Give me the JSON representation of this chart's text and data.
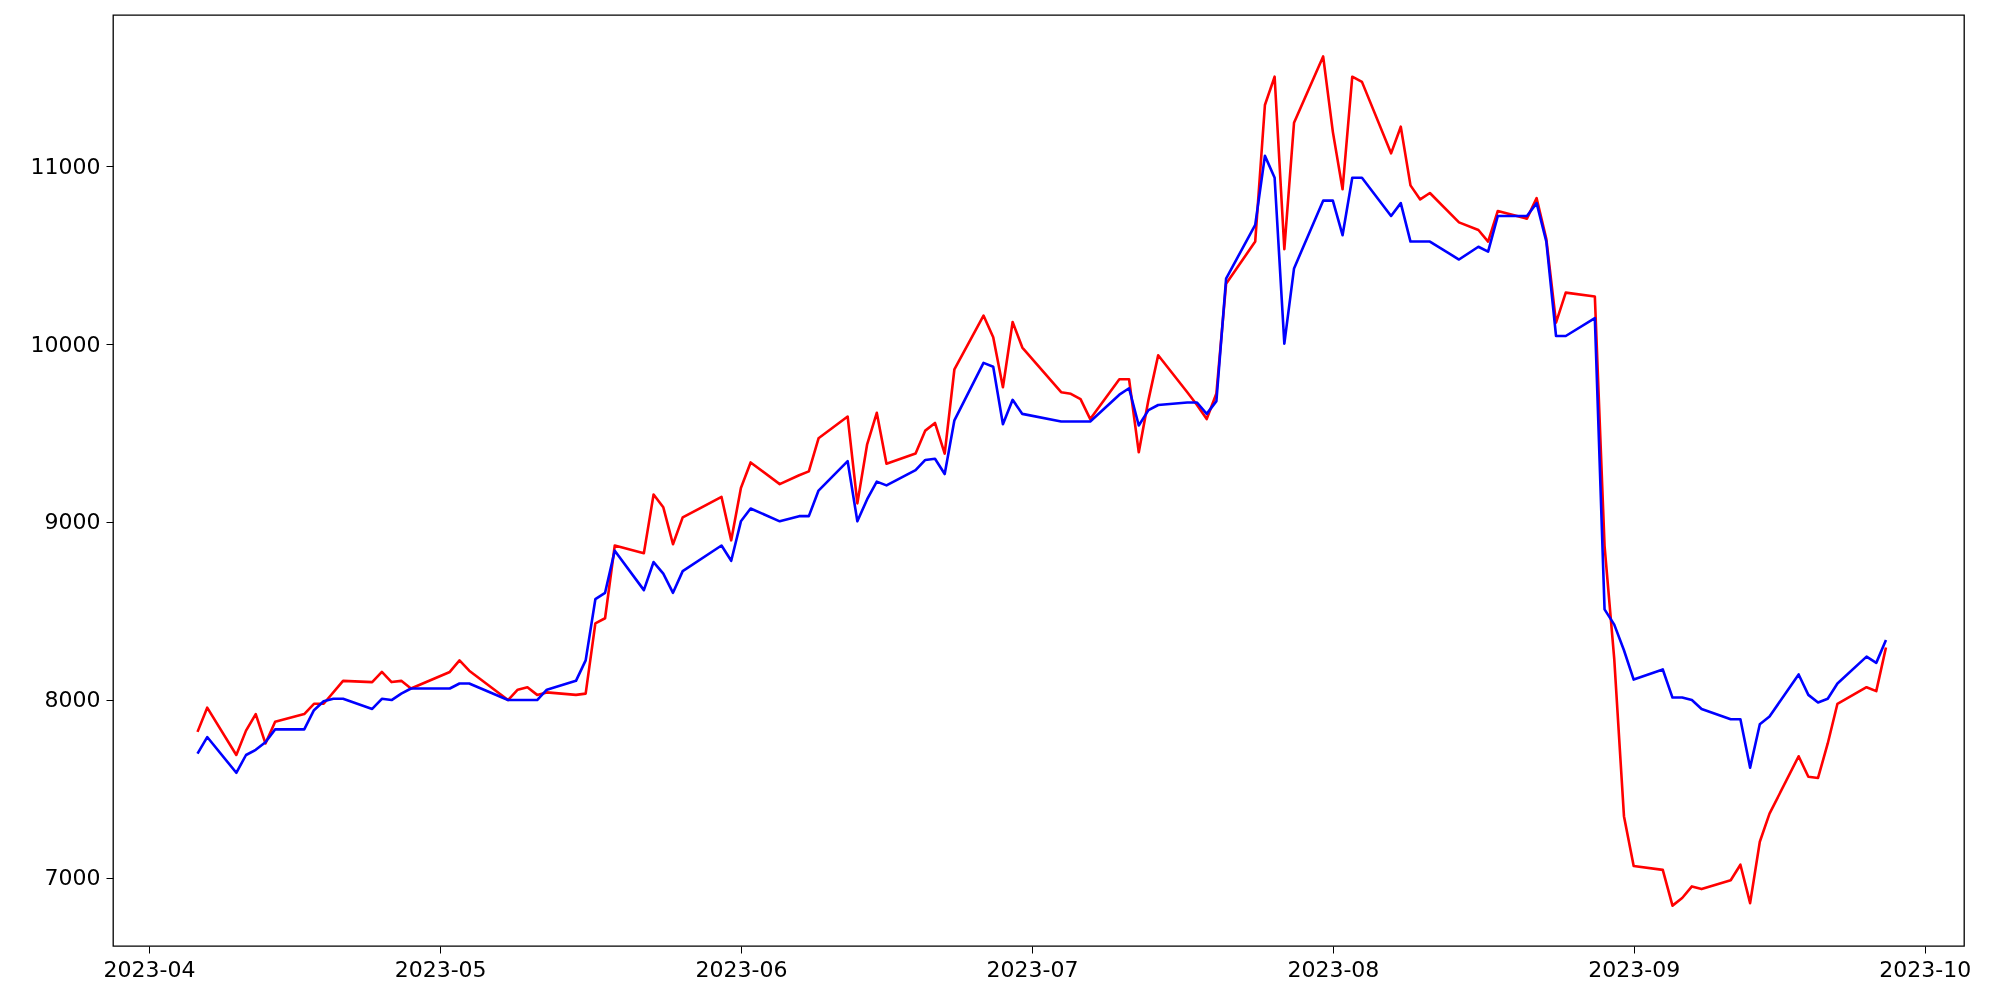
{
  "chart_data": {
    "type": "line",
    "xlim": [
      "2023-03-28T07:00",
      "2023-10-05T01:00"
    ],
    "ylim": [
      6615,
      11850
    ],
    "xticks": [
      "2023-04",
      "2023-05",
      "2023-06",
      "2023-07",
      "2023-08",
      "2023-09",
      "2023-10"
    ],
    "yticks": [
      7000,
      8000,
      9000,
      10000,
      11000
    ],
    "grid": false,
    "line_style": "solid",
    "marker": "none",
    "series": [
      {
        "color": "#ff0000",
        "x": [
          "2023-04-06",
          "2023-04-07",
          "2023-04-10",
          "2023-04-11",
          "2023-04-12",
          "2023-04-13",
          "2023-04-14",
          "2023-04-17",
          "2023-04-18",
          "2023-04-19",
          "2023-04-21",
          "2023-04-24",
          "2023-04-25",
          "2023-04-26",
          "2023-04-27",
          "2023-04-28",
          "2023-05-02",
          "2023-05-03",
          "2023-05-04",
          "2023-05-08",
          "2023-05-09",
          "2023-05-10",
          "2023-05-11",
          "2023-05-12",
          "2023-05-15",
          "2023-05-16",
          "2023-05-17",
          "2023-05-18",
          "2023-05-19",
          "2023-05-22",
          "2023-05-23",
          "2023-05-24",
          "2023-05-25",
          "2023-05-26",
          "2023-05-30",
          "2023-05-31",
          "2023-06-01",
          "2023-06-02",
          "2023-06-05",
          "2023-06-07",
          "2023-06-08",
          "2023-06-09",
          "2023-06-12",
          "2023-06-13",
          "2023-06-14",
          "2023-06-15",
          "2023-06-16",
          "2023-06-19",
          "2023-06-20",
          "2023-06-21",
          "2023-06-22",
          "2023-06-23",
          "2023-06-26",
          "2023-06-27",
          "2023-06-28",
          "2023-06-29",
          "2023-06-30",
          "2023-07-04",
          "2023-07-05",
          "2023-07-06",
          "2023-07-07",
          "2023-07-10",
          "2023-07-11",
          "2023-07-12",
          "2023-07-13",
          "2023-07-14",
          "2023-07-17",
          "2023-07-18",
          "2023-07-19",
          "2023-07-20",
          "2023-07-21",
          "2023-07-24",
          "2023-07-25",
          "2023-07-26",
          "2023-07-27",
          "2023-07-28",
          "2023-07-31",
          "2023-08-01",
          "2023-08-02",
          "2023-08-03",
          "2023-08-04",
          "2023-08-07",
          "2023-08-08",
          "2023-08-09",
          "2023-08-10",
          "2023-08-11",
          "2023-08-14",
          "2023-08-16",
          "2023-08-17",
          "2023-08-18",
          "2023-08-21",
          "2023-08-22",
          "2023-08-23",
          "2023-08-24",
          "2023-08-25",
          "2023-08-28",
          "2023-08-29",
          "2023-08-30",
          "2023-08-31",
          "2023-09-01",
          "2023-09-04",
          "2023-09-05",
          "2023-09-06",
          "2023-09-07",
          "2023-09-08",
          "2023-09-11",
          "2023-09-12",
          "2023-09-13",
          "2023-09-14",
          "2023-09-15",
          "2023-09-18",
          "2023-09-19",
          "2023-09-20",
          "2023-09-21",
          "2023-09-22",
          "2023-09-25",
          "2023-09-26",
          "2023-09-27"
        ],
        "values": [
          7819,
          7955,
          7689,
          7826,
          7919,
          7754,
          7876,
          7919,
          7977,
          7977,
          8106,
          8099,
          8156,
          8099,
          8106,
          8063,
          8156,
          8221,
          8163,
          7998,
          8056,
          8070,
          8027,
          8041,
          8027,
          8034,
          8429,
          8458,
          8867,
          8824,
          9154,
          9082,
          8874,
          9025,
          9140,
          8896,
          9190,
          9334,
          9212,
          9262,
          9284,
          9470,
          9592,
          9104,
          9434,
          9613,
          9327,
          9384,
          9513,
          9556,
          9384,
          9858,
          10160,
          10038,
          9757,
          10124,
          9980,
          9729,
          9720,
          9690,
          9578,
          9802,
          9802,
          9391,
          9686,
          9937,
          9729,
          9657,
          9578,
          9722,
          10339,
          10576,
          11344,
          11503,
          10533,
          11244,
          11617,
          11193,
          10870,
          11503,
          11474,
          11072,
          11222,
          10892,
          10813,
          10849,
          10684,
          10641,
          10576,
          10748,
          10705,
          10820,
          10590,
          10120,
          10289,
          10267,
          8865,
          8228,
          7345,
          7065,
          7043,
          6842,
          6885,
          6950,
          6935,
          6985,
          7072,
          6856,
          7201,
          7359,
          7682,
          7567,
          7560,
          7754,
          7977,
          8070,
          8048,
          8293
        ]
      },
      {
        "color": "#0000ff",
        "x": [
          "2023-04-06",
          "2023-04-07",
          "2023-04-10",
          "2023-04-11",
          "2023-04-12",
          "2023-04-13",
          "2023-04-14",
          "2023-04-17",
          "2023-04-18",
          "2023-04-19",
          "2023-04-20",
          "2023-04-21",
          "2023-04-24",
          "2023-04-25",
          "2023-04-26",
          "2023-04-27",
          "2023-04-28",
          "2023-05-02",
          "2023-05-03",
          "2023-05-04",
          "2023-05-08",
          "2023-05-09",
          "2023-05-10",
          "2023-05-11",
          "2023-05-12",
          "2023-05-15",
          "2023-05-16",
          "2023-05-17",
          "2023-05-18",
          "2023-05-19",
          "2023-05-22",
          "2023-05-23",
          "2023-05-24",
          "2023-05-25",
          "2023-05-26",
          "2023-05-30",
          "2023-05-31",
          "2023-06-01",
          "2023-06-02",
          "2023-06-05",
          "2023-06-07",
          "2023-06-08",
          "2023-06-09",
          "2023-06-12",
          "2023-06-13",
          "2023-06-14",
          "2023-06-15",
          "2023-06-16",
          "2023-06-19",
          "2023-06-20",
          "2023-06-21",
          "2023-06-22",
          "2023-06-23",
          "2023-06-26",
          "2023-06-27",
          "2023-06-28",
          "2023-06-29",
          "2023-06-30",
          "2023-07-04",
          "2023-07-05",
          "2023-07-06",
          "2023-07-07",
          "2023-07-10",
          "2023-07-11",
          "2023-07-12",
          "2023-07-13",
          "2023-07-14",
          "2023-07-17",
          "2023-07-18",
          "2023-07-19",
          "2023-07-20",
          "2023-07-21",
          "2023-07-24",
          "2023-07-25",
          "2023-07-26",
          "2023-07-27",
          "2023-07-28",
          "2023-07-31",
          "2023-08-01",
          "2023-08-02",
          "2023-08-03",
          "2023-08-04",
          "2023-08-07",
          "2023-08-08",
          "2023-08-09",
          "2023-08-10",
          "2023-08-11",
          "2023-08-14",
          "2023-08-16",
          "2023-08-17",
          "2023-08-18",
          "2023-08-21",
          "2023-08-22",
          "2023-08-23",
          "2023-08-24",
          "2023-08-25",
          "2023-08-28",
          "2023-08-29",
          "2023-08-30",
          "2023-08-31",
          "2023-09-01",
          "2023-09-04",
          "2023-09-05",
          "2023-09-06",
          "2023-09-07",
          "2023-09-08",
          "2023-09-11",
          "2023-09-12",
          "2023-09-13",
          "2023-09-14",
          "2023-09-15",
          "2023-09-18",
          "2023-09-19",
          "2023-09-20",
          "2023-09-21",
          "2023-09-22",
          "2023-09-25",
          "2023-09-26",
          "2023-09-27"
        ],
        "values": [
          7697,
          7790,
          7589,
          7689,
          7718,
          7761,
          7833,
          7833,
          7941,
          7991,
          8005,
          8005,
          7948,
          8005,
          7998,
          8034,
          8063,
          8063,
          8091,
          8091,
          7998,
          7998,
          7998,
          7998,
          8056,
          8106,
          8221,
          8565,
          8601,
          8838,
          8616,
          8774,
          8709,
          8601,
          8723,
          8867,
          8781,
          9003,
          9075,
          9003,
          9032,
          9032,
          9176,
          9341,
          9003,
          9126,
          9226,
          9205,
          9291,
          9348,
          9355,
          9269,
          9571,
          9894,
          9872,
          9549,
          9686,
          9607,
          9564,
          9564,
          9564,
          9564,
          9715,
          9751,
          9542,
          9628,
          9657,
          9671,
          9671,
          9607,
          9679,
          10368,
          10670,
          11058,
          10935,
          10002,
          10425,
          10806,
          10806,
          10612,
          10935,
          10935,
          10720,
          10792,
          10576,
          10576,
          10576,
          10475,
          10547,
          10519,
          10720,
          10720,
          10792,
          10576,
          10045,
          10045,
          10145,
          8508,
          8422,
          8278,
          8113,
          8170,
          8012,
          8012,
          7998,
          7948,
          7890,
          7890,
          7618,
          7862,
          7905,
          8142,
          8027,
          7984,
          8005,
          8091,
          8242,
          8207,
          8336
        ]
      }
    ]
  }
}
